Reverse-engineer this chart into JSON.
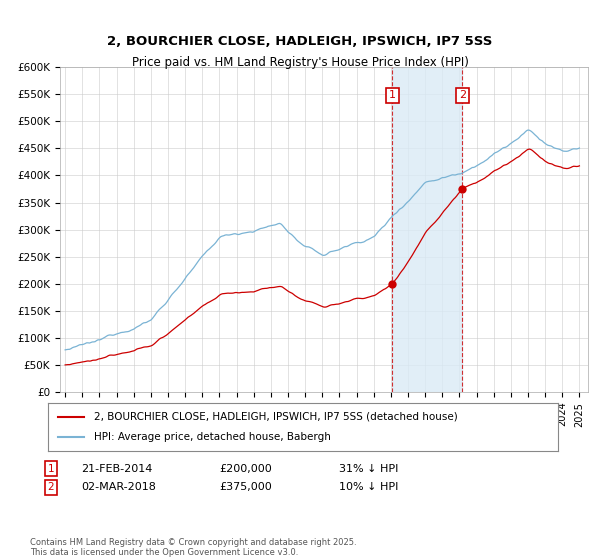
{
  "title1": "2, BOURCHIER CLOSE, HADLEIGH, IPSWICH, IP7 5SS",
  "title2": "Price paid vs. HM Land Registry's House Price Index (HPI)",
  "ylabel_ticks": [
    "£0",
    "£50K",
    "£100K",
    "£150K",
    "£200K",
    "£250K",
    "£300K",
    "£350K",
    "£400K",
    "£450K",
    "£500K",
    "£550K",
    "£600K"
  ],
  "ytick_vals": [
    0,
    50000,
    100000,
    150000,
    200000,
    250000,
    300000,
    350000,
    400000,
    450000,
    500000,
    550000,
    600000
  ],
  "hpi_color": "#7ab3d4",
  "property_color": "#cc0000",
  "sale1_year": 2014.083,
  "sale1_price": 200000,
  "sale2_year": 2018.167,
  "sale2_price": 375000,
  "legend_property": "2, BOURCHIER CLOSE, HADLEIGH, IPSWICH, IP7 5SS (detached house)",
  "legend_hpi": "HPI: Average price, detached house, Babergh",
  "footer": "Contains HM Land Registry data © Crown copyright and database right 2025.\nThis data is licensed under the Open Government Licence v3.0.",
  "xmin": 1994.7,
  "xmax": 2025.5,
  "ymin": 0,
  "ymax": 600000,
  "background_color": "#ffffff",
  "grid_color": "#cccccc",
  "shade_color": "#daeaf5"
}
